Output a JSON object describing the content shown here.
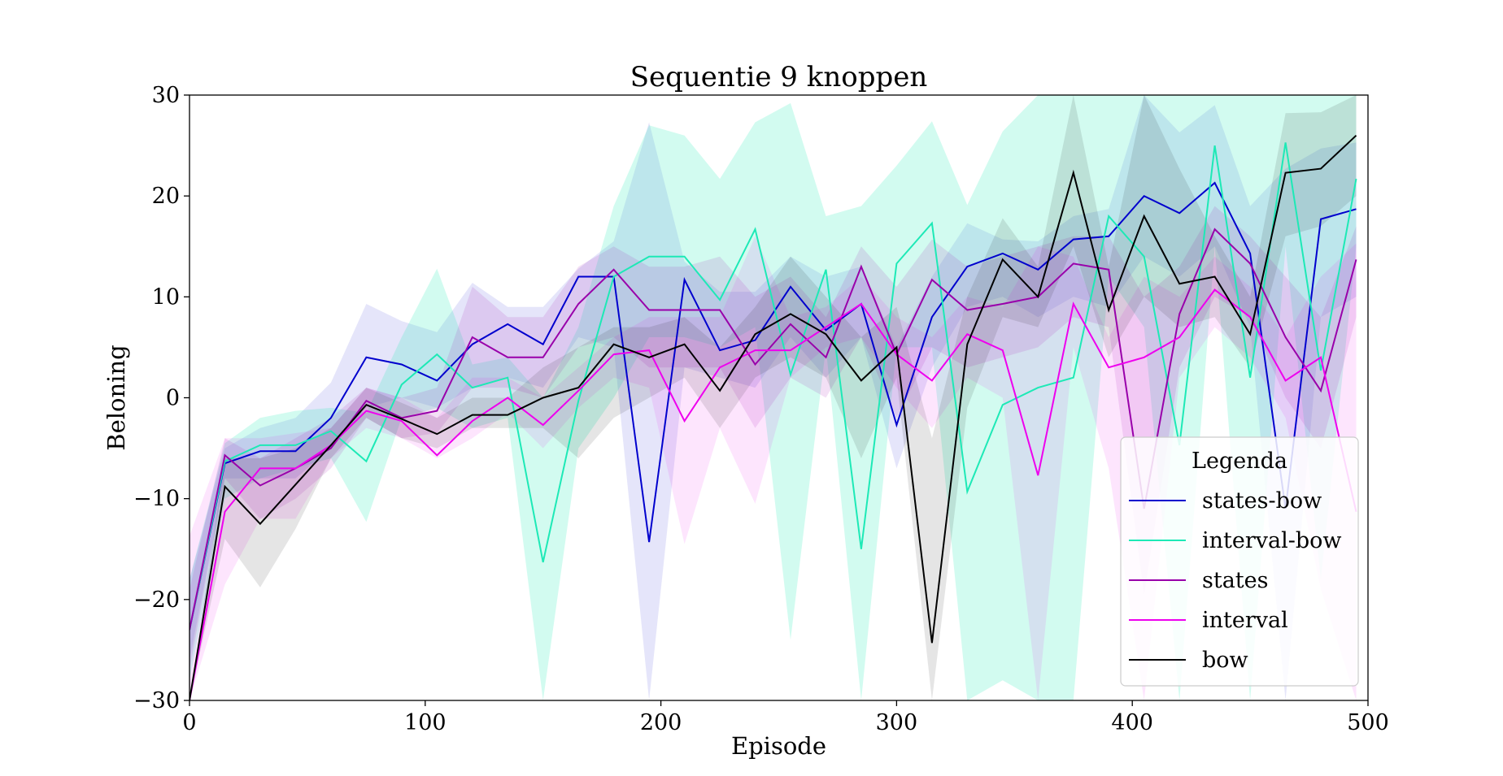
{
  "chart_data": {
    "type": "line",
    "title": "Sequentie 9 knoppen",
    "xlabel": "Episode",
    "ylabel": "Beloning",
    "xlim": [
      0,
      500
    ],
    "ylim": [
      -30,
      30
    ],
    "xticks": [
      0,
      100,
      200,
      300,
      400,
      500
    ],
    "yticks": [
      -30,
      -20,
      -10,
      0,
      10,
      20,
      30
    ],
    "xtick_labels": [
      "0",
      "100",
      "200",
      "300",
      "400",
      "500"
    ],
    "ytick_labels": [
      "−30",
      "−20",
      "−10",
      "0",
      "10",
      "20",
      "30"
    ],
    "grid": false,
    "legend": {
      "title": "Legenda",
      "placement": "lower-right"
    },
    "x": [
      0,
      15,
      30,
      45,
      60,
      75,
      90,
      105,
      120,
      135,
      150,
      165,
      180,
      195,
      210,
      225,
      240,
      255,
      270,
      285,
      300,
      315,
      330,
      345,
      360,
      375,
      390,
      405,
      420,
      435,
      450,
      465,
      480,
      495
    ],
    "series": [
      {
        "name": "states-bow",
        "color": "#0000cd",
        "values": [
          -23,
          -6.5,
          -5.3,
          -5.3,
          -2,
          4,
          3.3,
          1.7,
          5.3,
          7.3,
          5.3,
          12,
          12,
          -14.3,
          11.7,
          4.7,
          5.7,
          11,
          6.7,
          9.3,
          -2.7,
          8,
          13,
          14.3,
          12.7,
          15.7,
          16,
          20,
          18.3,
          21.3,
          14.3,
          -11,
          17.7,
          18.7
        ],
        "lower": [
          -26,
          -8,
          -8,
          -8,
          -5,
          -1,
          0,
          -1,
          1,
          2,
          1,
          6,
          5,
          -30,
          3,
          2,
          1,
          6,
          2,
          6,
          -7,
          3,
          9,
          10,
          8,
          10,
          9,
          14,
          12,
          15,
          7,
          -30,
          8,
          10
        ],
        "upper": [
          -18,
          -5,
          -3,
          -2,
          1.5,
          9.3,
          7.6,
          6.5,
          11.4,
          9,
          9,
          12.8,
          15.5,
          27.3,
          13.5,
          10.5,
          10.5,
          14,
          12,
          13,
          5,
          12,
          17.3,
          15.7,
          15.5,
          18,
          18.7,
          30,
          26.3,
          29,
          19,
          22.7,
          24.7,
          25.3
        ]
      },
      {
        "name": "interval-bow",
        "color": "#1de9b6",
        "values": [
          -23,
          -6.3,
          -4.7,
          -4.7,
          -3.3,
          -6.3,
          1.3,
          4.3,
          1,
          2,
          -16.3,
          -0.3,
          12,
          14,
          14,
          9.7,
          16.7,
          2.3,
          12.7,
          -15,
          13.3,
          17.3,
          -9.3,
          -0.7,
          1,
          2,
          18,
          14,
          -4.7,
          25,
          2,
          25.3,
          2.7,
          21.7
        ],
        "lower": [
          -28,
          -10,
          -8,
          -7,
          -6,
          -12.3,
          -2,
          -1,
          -3,
          -2,
          -30,
          -5,
          0,
          6,
          6,
          5,
          7,
          -24,
          5,
          -30,
          5,
          5,
          -30,
          -28,
          -30,
          -30,
          12,
          7,
          -30,
          15,
          -30,
          15,
          -18,
          15
        ],
        "upper": [
          -18,
          -4.5,
          -2,
          -1.3,
          -1,
          -1.5,
          6,
          12.8,
          3.3,
          4,
          0,
          7,
          19,
          27,
          26,
          21.7,
          27.3,
          29.2,
          18,
          19,
          23,
          27.4,
          19.1,
          26.4,
          30,
          30,
          30,
          30,
          30,
          30,
          30,
          30,
          30,
          30
        ]
      },
      {
        "name": "states",
        "color": "#9900aa",
        "values": [
          -23,
          -5.7,
          -8.7,
          -7,
          -5,
          -0.3,
          -2,
          -1.3,
          6,
          4,
          4,
          9.3,
          12.7,
          8.7,
          8.7,
          8.7,
          3.3,
          7.3,
          4,
          13,
          4.3,
          11.7,
          8.7,
          9.3,
          10,
          13.3,
          12.7,
          -11,
          8.3,
          16.7,
          13.3,
          6,
          0.7,
          13.7
        ],
        "lower": [
          -27,
          -8,
          -12,
          -10,
          -7,
          -2,
          -4,
          -3.5,
          1,
          1,
          0,
          5,
          6,
          3,
          3,
          3,
          -3,
          2,
          0,
          6,
          -2,
          5,
          3,
          4,
          5,
          8,
          7,
          -19.5,
          3,
          10,
          8,
          0,
          -5,
          8
        ],
        "upper": [
          -19,
          -4,
          -6,
          -4,
          -2,
          1,
          0,
          1,
          11,
          8,
          8,
          13,
          15,
          13,
          13,
          14,
          10,
          12,
          8,
          15,
          11,
          15.7,
          13,
          14,
          15,
          16,
          16,
          10,
          13,
          19,
          16,
          12,
          8,
          17
        ]
      },
      {
        "name": "interval",
        "color": "#ee00ee",
        "values": [
          -30,
          -11.3,
          -7,
          -7,
          -4.7,
          -1.3,
          -2.3,
          -5.7,
          -2.3,
          0,
          -2.7,
          0.7,
          4.3,
          4.7,
          -2.3,
          3,
          4.7,
          4.7,
          7,
          9.3,
          4.3,
          1.7,
          6.3,
          4.7,
          -7.7,
          9.3,
          3,
          4,
          6,
          10.7,
          8,
          1.7,
          4,
          -11.3
        ],
        "lower": [
          -30,
          -18.5,
          -12,
          -12,
          -6,
          -3,
          -4,
          -6,
          -4,
          -1.5,
          -5,
          -1,
          2,
          1,
          -14.5,
          -3,
          -10.5,
          2,
          5,
          6,
          1,
          -3,
          2,
          0,
          -30,
          5,
          -7,
          -30,
          2,
          7,
          4,
          -2,
          -19,
          -30
        ],
        "upper": [
          -13.7,
          -4,
          -4,
          -3.5,
          -3,
          1,
          0,
          -2,
          2,
          2,
          0,
          3,
          6,
          8,
          8,
          8,
          16,
          8,
          9,
          12,
          8,
          6,
          10,
          9,
          15,
          14,
          6,
          12,
          10,
          14,
          11,
          6,
          12,
          15.3
        ]
      },
      {
        "name": "bow",
        "color": "#000000",
        "values": [
          -30,
          -8.8,
          -12.5,
          -8.6,
          -4.7,
          -0.7,
          -2.1,
          -3.6,
          -1.7,
          -1.7,
          0,
          1,
          5.3,
          4,
          5.3,
          0.7,
          6.3,
          8.3,
          6.3,
          1.7,
          5,
          -24.3,
          5.3,
          13.7,
          10,
          22.3,
          8.7,
          18,
          11.3,
          12,
          6.3,
          22.3,
          22.7,
          26
        ],
        "lower": [
          -30,
          -14,
          -18.8,
          -13,
          -6,
          -2,
          -4,
          -5,
          -3,
          -3,
          -3,
          -6,
          -2,
          0,
          2,
          -3,
          2,
          4,
          2,
          -6,
          2,
          -30,
          -1,
          8,
          7,
          15,
          4,
          10,
          7,
          8,
          3,
          16,
          17,
          20
        ],
        "upper": [
          -30,
          -6,
          -6,
          -5,
          -3,
          1,
          -0.5,
          -2,
          0,
          0,
          3,
          5,
          7,
          7,
          8,
          5,
          9,
          14,
          10,
          6,
          9,
          -4,
          10,
          17.8,
          13,
          30,
          13,
          30,
          22.7,
          16,
          10,
          28.2,
          28.3,
          30
        ]
      }
    ]
  }
}
